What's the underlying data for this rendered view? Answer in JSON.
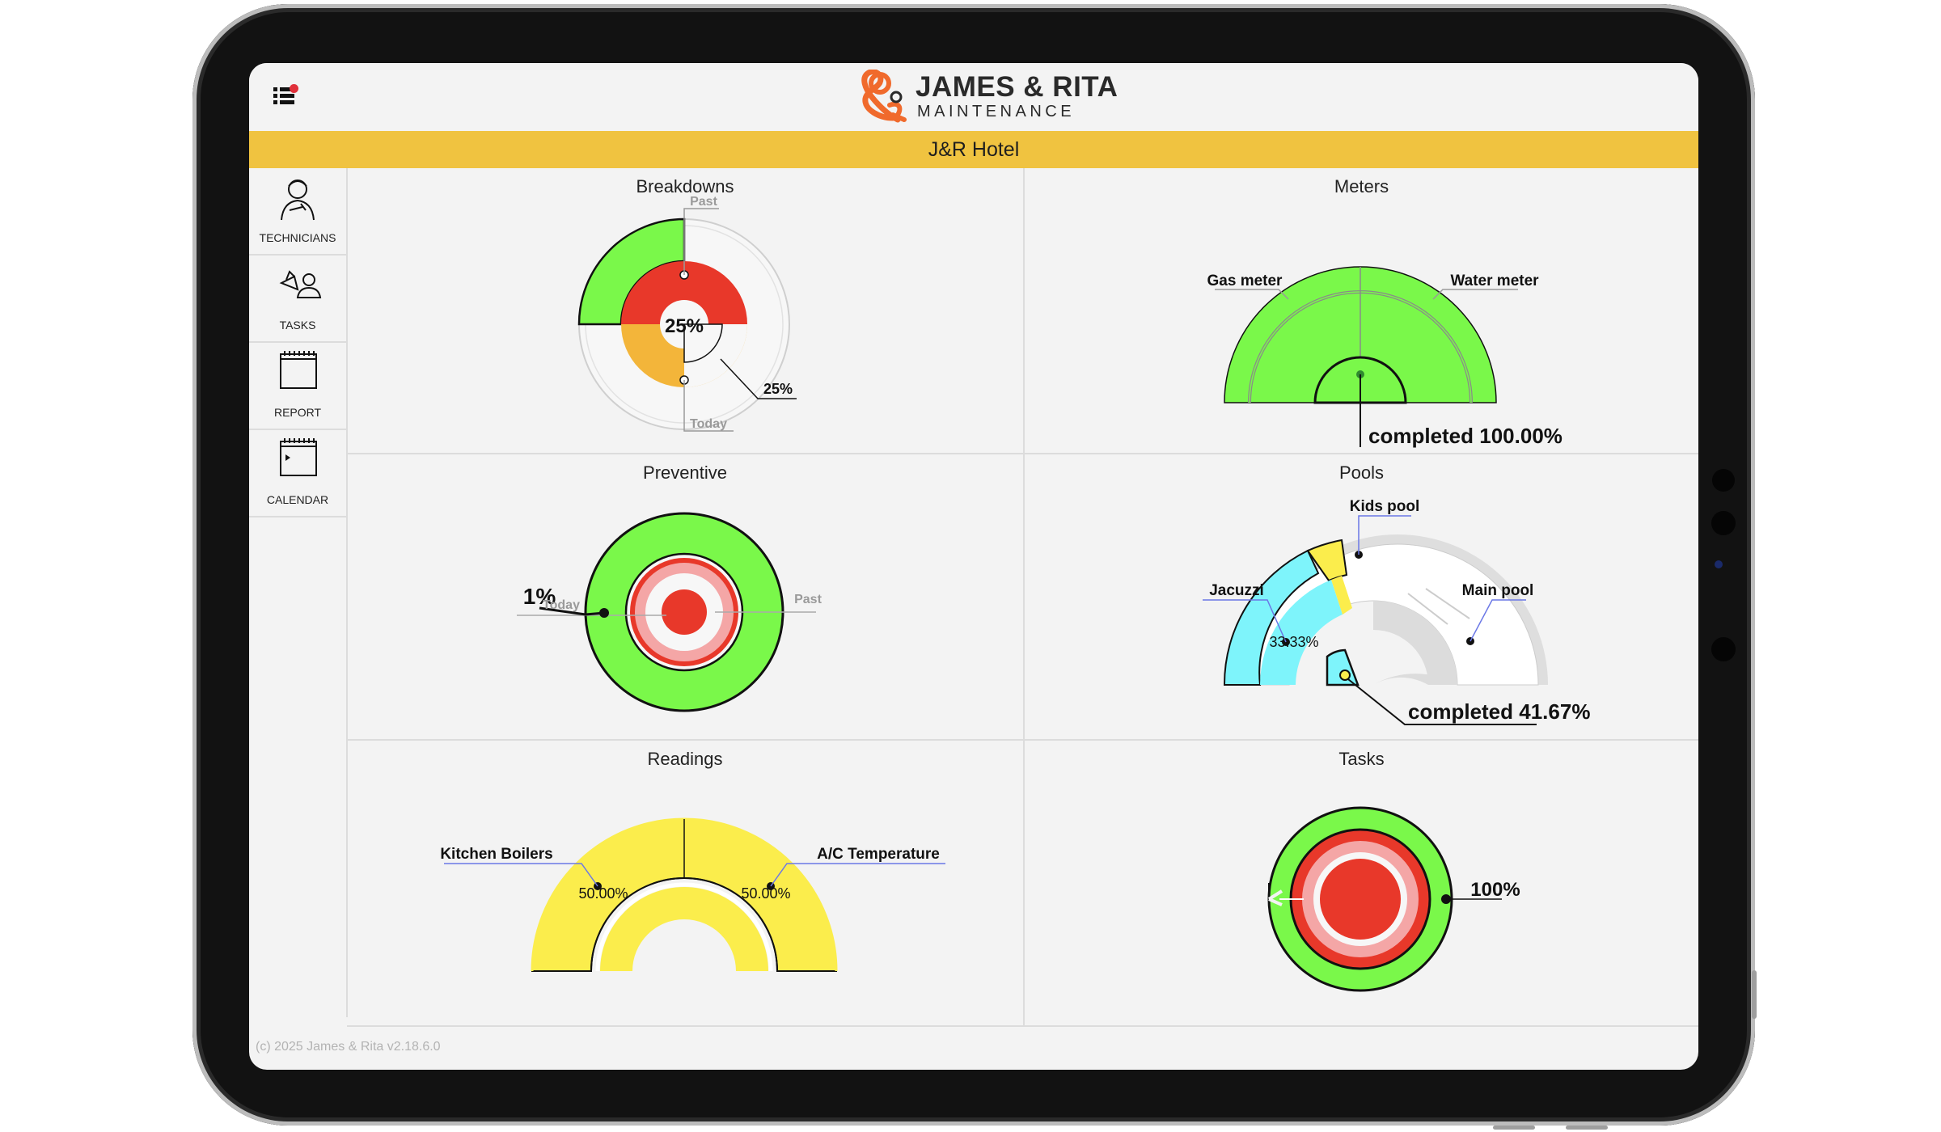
{
  "app": {
    "brand_title": "JAMES & RITA",
    "brand_subtitle": "MAINTENANCE",
    "hotel_name": "J&R Hotel",
    "footer": "(c) 2025 James & Rita v2.18.6.0"
  },
  "colors": {
    "brand_orange": "#f06a2c",
    "hotel_bar": "#f0c340",
    "green": "#7af84a",
    "red": "#e8382a",
    "orange": "#f3b53a",
    "yellow": "#fbed4c",
    "cyan": "#7ef4fb",
    "pink": "#f4a6a6",
    "light_gray": "#dcdcdc"
  },
  "sidebar": {
    "items": [
      {
        "label": "TECHNICIANS",
        "icon": "technician-icon"
      },
      {
        "label": "TASKS",
        "icon": "tasks-icon"
      },
      {
        "label": "REPORT",
        "icon": "report-icon"
      },
      {
        "label": "CALENDAR",
        "icon": "calendar-icon"
      }
    ]
  },
  "panels": {
    "breakdowns": {
      "title": "Breakdowns",
      "center_value": "25%",
      "callout_value": "25%",
      "label_past": "Past",
      "label_today": "Today"
    },
    "meters": {
      "title": "Meters",
      "label_gas": "Gas meter",
      "label_water": "Water meter",
      "completed": "completed 100.00%"
    },
    "preventive": {
      "title": "Preventive",
      "value": "1%",
      "label_today": "Today",
      "label_past": "Past"
    },
    "pools": {
      "title": "Pools",
      "label_kids": "Kids pool",
      "label_jacuzzi": "Jacuzzi",
      "label_main": "Main pool",
      "jacuzzi_value": "33.33%",
      "completed": "completed 41.67%"
    },
    "readings": {
      "title": "Readings",
      "label_boilers": "Kitchen Boilers",
      "label_ac": "A/C Temperature",
      "boilers_value": "50.00%",
      "ac_value": "50.00%"
    },
    "tasks": {
      "title": "Tasks",
      "value": "100%"
    }
  },
  "chart_data": [
    {
      "type": "pie",
      "title": "Breakdowns",
      "center_label": "25%",
      "callout": "25%",
      "labels": [
        "Past",
        "Today"
      ]
    },
    {
      "type": "pie",
      "title": "Meters",
      "categories": [
        "Gas meter",
        "Water meter"
      ],
      "completed_percent": 100.0
    },
    {
      "type": "pie",
      "title": "Preventive",
      "value_percent": 1,
      "labels": [
        "Today",
        "Past"
      ]
    },
    {
      "type": "pie",
      "title": "Pools",
      "categories": [
        "Jacuzzi",
        "Kids pool",
        "Main pool"
      ],
      "jacuzzi_percent": 33.33,
      "completed_percent": 41.67
    },
    {
      "type": "pie",
      "title": "Readings",
      "categories": [
        "Kitchen Boilers",
        "A/C Temperature"
      ],
      "values_percent": [
        50.0,
        50.0
      ]
    },
    {
      "type": "pie",
      "title": "Tasks",
      "value_percent": 100
    }
  ]
}
